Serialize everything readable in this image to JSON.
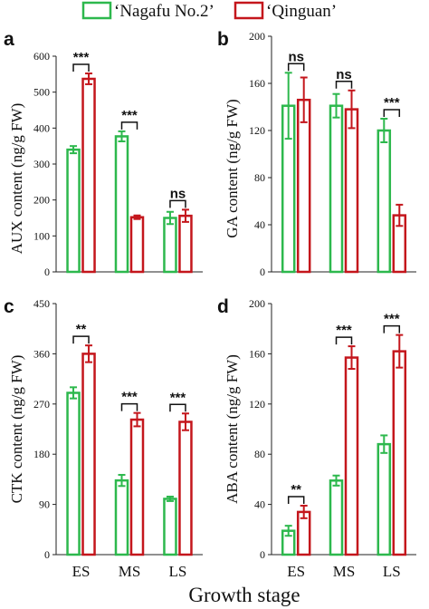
{
  "legend": {
    "items": [
      {
        "label": "‘Nagafu No.2’",
        "color": "#2db84d"
      },
      {
        "label": "‘Qinguan’",
        "color": "#c4161c"
      }
    ]
  },
  "xlabel": "Growth stage",
  "chart_data": [
    {
      "type": "bar",
      "panel": "a",
      "categories": [
        "",
        "",
        ""
      ],
      "ylabel": "AUX content (ng/g FW)",
      "ylim": [
        0,
        600
      ],
      "yticks": [
        0,
        100,
        200,
        300,
        400,
        500,
        600
      ],
      "series": [
        {
          "name": "‘Nagafu No.2’",
          "values": [
            340,
            377,
            150
          ],
          "errors": [
            10,
            14,
            17
          ]
        },
        {
          "name": "‘Qinguan’",
          "values": [
            537,
            152,
            156
          ],
          "errors": [
            15,
            5,
            17
          ]
        }
      ],
      "significance": [
        "***",
        "***",
        "ns"
      ]
    },
    {
      "type": "bar",
      "panel": "b",
      "categories": [
        "",
        "",
        ""
      ],
      "ylabel": "GA content (ng/g FW)",
      "ylim": [
        0,
        200
      ],
      "yticks": [
        0,
        40,
        80,
        120,
        160,
        200
      ],
      "series": [
        {
          "name": "‘Nagafu No.2’",
          "values": [
            141,
            141,
            120
          ],
          "errors": [
            28,
            10,
            10
          ]
        },
        {
          "name": "‘Qinguan’",
          "values": [
            146,
            138,
            48
          ],
          "errors": [
            19,
            16,
            9
          ]
        }
      ],
      "significance": [
        "ns",
        "ns",
        "***"
      ]
    },
    {
      "type": "bar",
      "panel": "c",
      "categories": [
        "ES",
        "MS",
        "LS"
      ],
      "ylabel": "CTK content (ng/g FW)",
      "ylim": [
        0,
        450
      ],
      "yticks": [
        0,
        90,
        180,
        270,
        360,
        450
      ],
      "series": [
        {
          "name": "‘Nagafu No.2’",
          "values": [
            290,
            133,
            100
          ],
          "errors": [
            10,
            10,
            4
          ]
        },
        {
          "name": "‘Qinguan’",
          "values": [
            360,
            242,
            238
          ],
          "errors": [
            15,
            12,
            15
          ]
        }
      ],
      "significance": [
        "**",
        "***",
        "***"
      ]
    },
    {
      "type": "bar",
      "panel": "d",
      "categories": [
        "ES",
        "MS",
        "LS"
      ],
      "ylabel": "ABA content (ng/g FW)",
      "ylim": [
        0,
        200
      ],
      "yticks": [
        0,
        40,
        80,
        120,
        160,
        200
      ],
      "series": [
        {
          "name": "‘Nagafu No.2’",
          "values": [
            19,
            59,
            88
          ],
          "errors": [
            4,
            4,
            7
          ]
        },
        {
          "name": "‘Qinguan’",
          "values": [
            34,
            157,
            162
          ],
          "errors": [
            5,
            9,
            13
          ]
        }
      ],
      "significance": [
        "**",
        "***",
        "***"
      ]
    }
  ]
}
